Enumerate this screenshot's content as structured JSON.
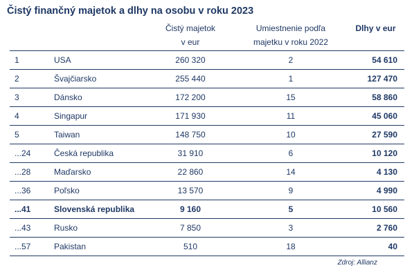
{
  "title": "Čistý finančný majetok a dlhy na osobu v roku 2023",
  "headers": {
    "net_assets_line1": "Čistý majetok",
    "net_assets_line2": "v eur",
    "rank_2022_line1": "Umiestnenie podľa",
    "rank_2022_line2": "majetku v roku 2022",
    "debt": "Dlhy v eur"
  },
  "rows": [
    {
      "rank": "1",
      "country": "USA",
      "net_assets": "260 320",
      "rank_2022": "2",
      "debt": "54 610",
      "highlight": false
    },
    {
      "rank": "2",
      "country": "Švajčiarsko",
      "net_assets": "255 440",
      "rank_2022": "1",
      "debt": "127 470",
      "highlight": false
    },
    {
      "rank": "3",
      "country": "Dánsko",
      "net_assets": "172 200",
      "rank_2022": "15",
      "debt": "58 860",
      "highlight": false
    },
    {
      "rank": "4",
      "country": "Singapur",
      "net_assets": "171 930",
      "rank_2022": "11",
      "debt": "45 060",
      "highlight": false
    },
    {
      "rank": "5",
      "country": "Taiwan",
      "net_assets": "148 750",
      "rank_2022": "10",
      "debt": "27 590",
      "highlight": false
    },
    {
      "rank": "...24",
      "country": "Česká republika",
      "net_assets": "31 910",
      "rank_2022": "6",
      "debt": "10 120",
      "highlight": false
    },
    {
      "rank": "...28",
      "country": "Maďarsko",
      "net_assets": "22 860",
      "rank_2022": "14",
      "debt": "4 130",
      "highlight": false
    },
    {
      "rank": "...36",
      "country": "Poľsko",
      "net_assets": "13 570",
      "rank_2022": "9",
      "debt": "4 990",
      "highlight": false
    },
    {
      "rank": "...41",
      "country": "Slovenská republika",
      "net_assets": "9 160",
      "rank_2022": "5",
      "debt": "10 560",
      "highlight": true
    },
    {
      "rank": "...43",
      "country": "Rusko",
      "net_assets": "7 850",
      "rank_2022": "3",
      "debt": "2 760",
      "highlight": false
    },
    {
      "rank": "...57",
      "country": "Pakistan",
      "net_assets": "510",
      "rank_2022": "18",
      "debt": "40",
      "highlight": false
    }
  ],
  "source": "Zdroj: Allianz",
  "colors": {
    "text": "#1f3864",
    "rule": "#1f3864"
  }
}
